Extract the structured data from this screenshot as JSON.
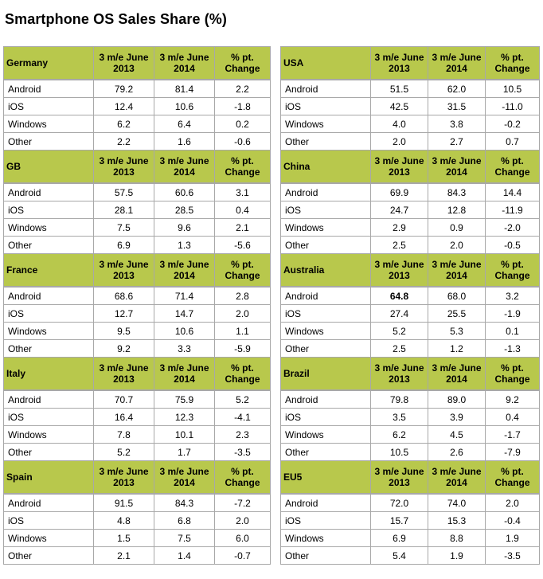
{
  "title": "Smartphone OS Sales Share (%)",
  "columns": [
    "3 m/e June 2013",
    "3 m/e June 2014",
    "% pt. Change"
  ],
  "left_tables": [
    {
      "region": "Germany",
      "rows": [
        {
          "os": "Android",
          "v2013": "79.2",
          "v2014": "81.4",
          "change": "2.2"
        },
        {
          "os": "iOS",
          "v2013": "12.4",
          "v2014": "10.6",
          "change": "-1.8"
        },
        {
          "os": "Windows",
          "v2013": "6.2",
          "v2014": "6.4",
          "change": "0.2"
        },
        {
          "os": "Other",
          "v2013": "2.2",
          "v2014": "1.6",
          "change": "-0.6"
        }
      ]
    },
    {
      "region": "GB",
      "rows": [
        {
          "os": "Android",
          "v2013": "57.5",
          "v2014": "60.6",
          "change": "3.1"
        },
        {
          "os": "iOS",
          "v2013": "28.1",
          "v2014": "28.5",
          "change": "0.4"
        },
        {
          "os": "Windows",
          "v2013": "7.5",
          "v2014": "9.6",
          "change": "2.1"
        },
        {
          "os": "Other",
          "v2013": "6.9",
          "v2014": "1.3",
          "change": "-5.6"
        }
      ]
    },
    {
      "region": "France",
      "rows": [
        {
          "os": "Android",
          "v2013": "68.6",
          "v2014": "71.4",
          "change": "2.8"
        },
        {
          "os": "iOS",
          "v2013": "12.7",
          "v2014": "14.7",
          "change": "2.0"
        },
        {
          "os": "Windows",
          "v2013": "9.5",
          "v2014": "10.6",
          "change": "1.1"
        },
        {
          "os": "Other",
          "v2013": "9.2",
          "v2014": "3.3",
          "change": "-5.9"
        }
      ]
    },
    {
      "region": "Italy",
      "rows": [
        {
          "os": "Android",
          "v2013": "70.7",
          "v2014": "75.9",
          "change": "5.2"
        },
        {
          "os": "iOS",
          "v2013": "16.4",
          "v2014": "12.3",
          "change": "-4.1"
        },
        {
          "os": "Windows",
          "v2013": "7.8",
          "v2014": "10.1",
          "change": "2.3"
        },
        {
          "os": "Other",
          "v2013": "5.2",
          "v2014": "1.7",
          "change": "-3.5"
        }
      ]
    },
    {
      "region": "Spain",
      "rows": [
        {
          "os": "Android",
          "v2013": "91.5",
          "v2014": "84.3",
          "change": "-7.2"
        },
        {
          "os": "iOS",
          "v2013": "4.8",
          "v2014": "6.8",
          "change": "2.0"
        },
        {
          "os": "Windows",
          "v2013": "1.5",
          "v2014": "7.5",
          "change": "6.0"
        },
        {
          "os": "Other",
          "v2013": "2.1",
          "v2014": "1.4",
          "change": "-0.7"
        }
      ]
    }
  ],
  "right_tables": [
    {
      "region": "USA",
      "rows": [
        {
          "os": "Android",
          "v2013": "51.5",
          "v2014": "62.0",
          "change": "10.5"
        },
        {
          "os": "iOS",
          "v2013": "42.5",
          "v2014": "31.5",
          "change": "-11.0"
        },
        {
          "os": "Windows",
          "v2013": "4.0",
          "v2014": "3.8",
          "change": "-0.2"
        },
        {
          "os": "Other",
          "v2013": "2.0",
          "v2014": "2.7",
          "change": "0.7"
        }
      ]
    },
    {
      "region": "China",
      "rows": [
        {
          "os": "Android",
          "v2013": "69.9",
          "v2014": "84.3",
          "change": "14.4"
        },
        {
          "os": "iOS",
          "v2013": "24.7",
          "v2014": "12.8",
          "change": "-11.9"
        },
        {
          "os": "Windows",
          "v2013": "2.9",
          "v2014": "0.9",
          "change": "-2.0"
        },
        {
          "os": "Other",
          "v2013": "2.5",
          "v2014": "2.0",
          "change": "-0.5"
        }
      ]
    },
    {
      "region": "Australia",
      "rows": [
        {
          "os": "Android",
          "v2013": "64.8",
          "v2014": "68.0",
          "change": "3.2",
          "bold2013": true
        },
        {
          "os": "iOS",
          "v2013": "27.4",
          "v2014": "25.5",
          "change": "-1.9"
        },
        {
          "os": "Windows",
          "v2013": "5.2",
          "v2014": "5.3",
          "change": "0.1"
        },
        {
          "os": "Other",
          "v2013": "2.5",
          "v2014": "1.2",
          "change": "-1.3"
        }
      ]
    },
    {
      "region": "Brazil",
      "rows": [
        {
          "os": "Android",
          "v2013": "79.8",
          "v2014": "89.0",
          "change": "9.2"
        },
        {
          "os": "iOS",
          "v2013": "3.5",
          "v2014": "3.9",
          "change": "0.4"
        },
        {
          "os": "Windows",
          "v2013": "6.2",
          "v2014": "4.5",
          "change": "-1.7"
        },
        {
          "os": "Other",
          "v2013": "10.5",
          "v2014": "2.6",
          "change": "-7.9"
        }
      ]
    },
    {
      "region": "EU5",
      "rows": [
        {
          "os": "Android",
          "v2013": "72.0",
          "v2014": "74.0",
          "change": "2.0"
        },
        {
          "os": "iOS",
          "v2013": "15.7",
          "v2014": "15.3",
          "change": "-0.4"
        },
        {
          "os": "Windows",
          "v2013": "6.9",
          "v2014": "8.8",
          "change": "1.9"
        },
        {
          "os": "Other",
          "v2013": "5.4",
          "v2014": "1.9",
          "change": "-3.5"
        }
      ]
    }
  ]
}
